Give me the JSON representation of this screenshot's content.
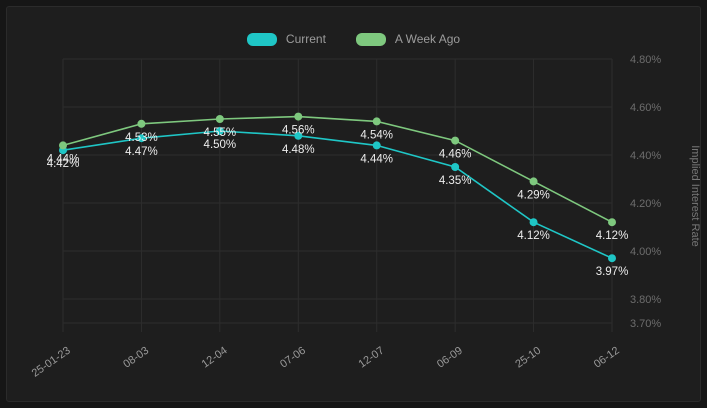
{
  "chart_data": {
    "type": "line",
    "x": [
      "25-01-23",
      "08-03",
      "12-04",
      "07-06",
      "12-07",
      "06-09",
      "25-10",
      "06-12"
    ],
    "series": [
      {
        "name": "Current",
        "color": "#1fc6c6",
        "values": [
          4.42,
          4.47,
          4.5,
          4.48,
          4.44,
          4.35,
          4.12,
          3.97
        ]
      },
      {
        "name": "A Week Ago",
        "color": "#7ec87e",
        "values": [
          4.44,
          4.53,
          4.55,
          4.56,
          4.54,
          4.46,
          4.29,
          4.12
        ]
      }
    ],
    "title": "",
    "xlabel": "",
    "ylabel": "Implied Interest Rate",
    "y_ticks": [
      4.8,
      4.6,
      4.4,
      4.2,
      4.0,
      3.8,
      3.7
    ],
    "ylim": [
      3.7,
      4.8
    ],
    "grid": true,
    "legend_position": "top",
    "value_label_format": "0.00%",
    "colors": {
      "background": "#1e1e1e",
      "gridline": "#2d2d2d",
      "tick_label": "#6d6d6d",
      "x_label": "#9a9a9a",
      "data_label": "#ededed",
      "axis_title": "#777777"
    }
  }
}
